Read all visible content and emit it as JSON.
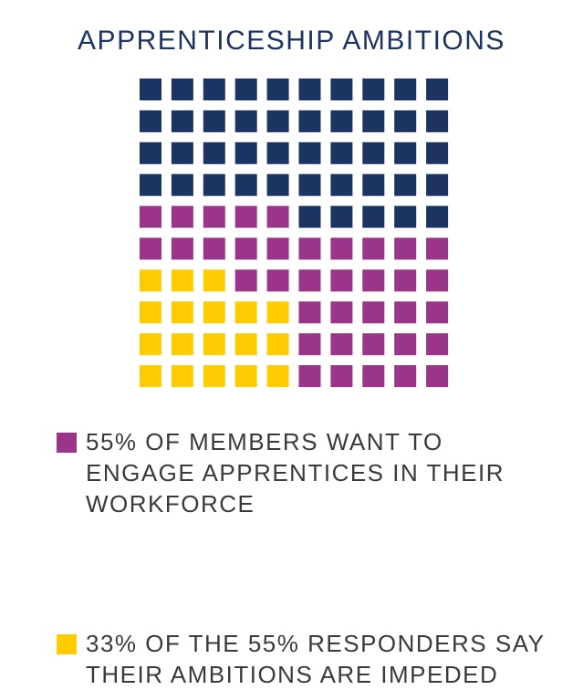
{
  "header": {
    "title": "APPRENTICESHIP AMBITIONS"
  },
  "colors": {
    "navy": "#1c3461",
    "purple": "#9b358a",
    "yellow": "#fecc00"
  },
  "chart_data": {
    "type": "waffle",
    "title": "APPRENTICESHIP AMBITIONS",
    "grid": {
      "rows": 10,
      "cols": 10
    },
    "rows": [
      [
        "navy",
        "navy",
        "navy",
        "navy",
        "navy",
        "navy",
        "navy",
        "navy",
        "navy",
        "navy"
      ],
      [
        "navy",
        "navy",
        "navy",
        "navy",
        "navy",
        "navy",
        "navy",
        "navy",
        "navy",
        "navy"
      ],
      [
        "navy",
        "navy",
        "navy",
        "navy",
        "navy",
        "navy",
        "navy",
        "navy",
        "navy",
        "navy"
      ],
      [
        "navy",
        "navy",
        "navy",
        "navy",
        "navy",
        "navy",
        "navy",
        "navy",
        "navy",
        "navy"
      ],
      [
        "purple",
        "purple",
        "purple",
        "purple",
        "purple",
        "navy",
        "navy",
        "navy",
        "navy",
        "navy"
      ],
      [
        "purple",
        "purple",
        "purple",
        "purple",
        "purple",
        "purple",
        "purple",
        "purple",
        "purple",
        "purple"
      ],
      [
        "yellow",
        "yellow",
        "yellow",
        "purple",
        "purple",
        "purple",
        "purple",
        "purple",
        "purple",
        "purple"
      ],
      [
        "yellow",
        "yellow",
        "yellow",
        "yellow",
        "yellow",
        "purple",
        "purple",
        "purple",
        "purple",
        "purple"
      ],
      [
        "yellow",
        "yellow",
        "yellow",
        "yellow",
        "yellow",
        "purple",
        "purple",
        "purple",
        "purple",
        "purple"
      ],
      [
        "yellow",
        "yellow",
        "yellow",
        "yellow",
        "yellow",
        "purple",
        "purple",
        "purple",
        "purple",
        "purple"
      ]
    ],
    "legend": [
      {
        "color": "purple",
        "text": "55% OF MEMBERS WANT TO ENGAGE APPRENTICES IN THEIR WORKFORCE"
      },
      {
        "color": "yellow",
        "text": "33% OF THE 55% RESPONDERS SAY THEIR AMBITIONS ARE IMPEDED"
      }
    ]
  }
}
